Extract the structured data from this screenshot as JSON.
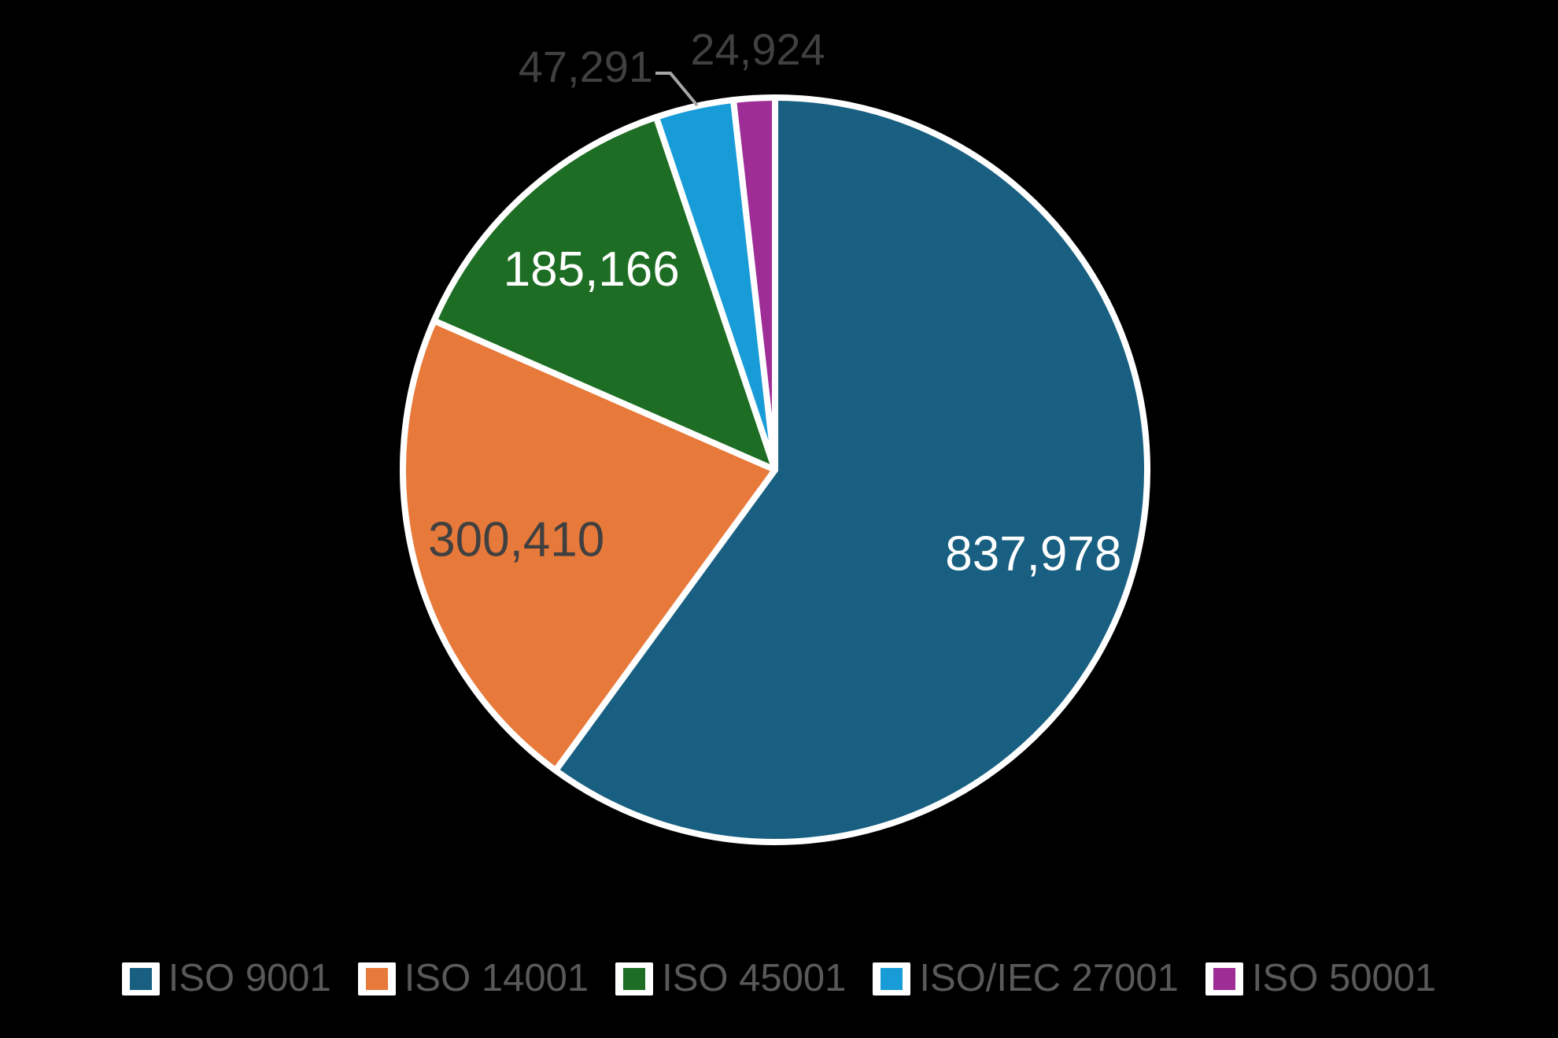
{
  "background_color": "#000000",
  "chart_data": {
    "type": "pie",
    "title": "",
    "start_angle_deg": 0,
    "direction": "clockwise",
    "legend_position": "bottom",
    "border_color": "#FFFFFF",
    "leader_line_color": "#A6A6A6",
    "slices": [
      {
        "label": "ISO 9001",
        "value": 837978,
        "value_label": "837,978",
        "color": "#185F81",
        "value_label_color": "#FFFFFF",
        "value_label_placement": "inside",
        "leader_line": false
      },
      {
        "label": "ISO 14001",
        "value": 300410,
        "value_label": "300,410",
        "color": "#E7793A",
        "value_label_color": "#404040",
        "value_label_placement": "inside",
        "leader_line": false
      },
      {
        "label": "ISO 45001",
        "value": 185166,
        "value_label": "185,166",
        "color": "#1D6E24",
        "value_label_color": "#FFFFFF",
        "value_label_placement": "inside",
        "leader_line": false
      },
      {
        "label": "ISO/IEC 27001",
        "value": 47291,
        "value_label": "47,291",
        "color": "#189CD8",
        "value_label_color": "#404040",
        "value_label_placement": "outside",
        "leader_line": true
      },
      {
        "label": "ISO 50001",
        "value": 24924,
        "value_label": "24,924",
        "color": "#9E2D96",
        "value_label_color": "#404040",
        "value_label_placement": "outside",
        "leader_line": false
      }
    ]
  },
  "legend": {
    "text_color": "#595959"
  }
}
